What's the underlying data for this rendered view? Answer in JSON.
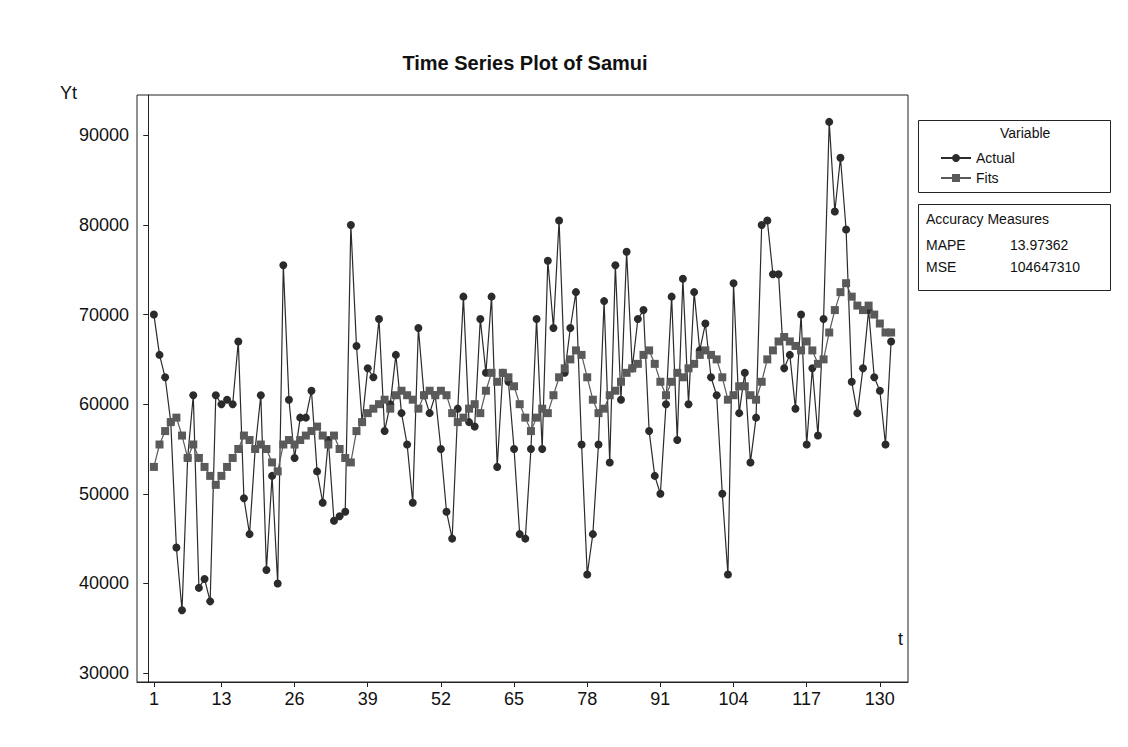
{
  "chart_data": {
    "type": "line",
    "title": "Time Series Plot of Samui",
    "x_label": "t",
    "y_label": "Yt",
    "x": [
      1,
      2,
      3,
      4,
      5,
      6,
      7,
      8,
      9,
      10,
      11,
      12,
      13,
      14,
      15,
      16,
      17,
      18,
      19,
      20,
      21,
      22,
      23,
      24,
      25,
      26,
      27,
      28,
      29,
      30,
      31,
      32,
      33,
      34,
      35,
      36,
      37,
      38,
      39,
      40,
      41,
      42,
      43,
      44,
      45,
      46,
      47,
      48,
      49,
      50,
      51,
      52,
      53,
      54,
      55,
      56,
      57,
      58,
      59,
      60,
      61,
      62,
      63,
      64,
      65,
      66,
      67,
      68,
      69,
      70,
      71,
      72,
      73,
      74,
      75,
      76,
      77,
      78,
      79,
      80,
      81,
      82,
      83,
      84,
      85,
      86,
      87,
      88,
      89,
      90,
      91,
      92,
      93,
      94,
      95,
      96,
      97,
      98,
      99,
      100,
      101,
      102,
      103,
      104,
      105,
      106,
      107,
      108,
      109,
      110,
      111,
      112,
      113,
      114,
      115,
      116,
      117,
      118,
      119,
      120,
      121,
      122,
      123,
      124,
      125,
      126,
      127,
      128,
      129,
      130,
      131,
      132
    ],
    "series": [
      {
        "name": "Actual",
        "color": "#2b2b2b",
        "marker": "circle",
        "line_style": "solid",
        "values": [
          70000,
          65500,
          63000,
          58000,
          44000,
          37000,
          54000,
          61000,
          39500,
          40500,
          38000,
          61000,
          60000,
          60500,
          60000,
          67000,
          49500,
          45500,
          55000,
          61000,
          41500,
          52000,
          40000,
          75500,
          60500,
          54000,
          58500,
          58500,
          61500,
          52500,
          49000,
          56000,
          47000,
          47500,
          48000,
          80000,
          66500,
          58000,
          64000,
          63000,
          69500,
          57000,
          60000,
          65500,
          59000,
          55500,
          49000,
          68500,
          61000,
          59000,
          61000,
          55000,
          48000,
          45000,
          59500,
          72000,
          58000,
          57500,
          69500,
          63500,
          72000,
          53000,
          63500,
          62500,
          55000,
          45500,
          45000,
          55000,
          69500,
          55000,
          76000,
          68500,
          80500,
          63500,
          68500,
          72500,
          55500,
          41000,
          45500,
          55500,
          71500,
          53500,
          75500,
          60500,
          77000,
          64000,
          69500,
          70500,
          57000,
          52000,
          50000,
          60000,
          72000,
          56000,
          74000,
          60000,
          72500,
          66000,
          69000,
          63000,
          61000,
          50000,
          41000,
          73500,
          59000,
          63500,
          53500,
          58500,
          80000,
          80500,
          74500,
          74500,
          64000,
          65500,
          59500,
          70000,
          55500,
          64000,
          56500,
          69500,
          91500,
          81500,
          87500,
          79500,
          62500,
          59000,
          64000,
          70500,
          63000,
          61500,
          55500,
          67000
        ]
      },
      {
        "name": "Fits",
        "color": "#5a5a5a",
        "marker": "square",
        "line_style": "solid",
        "values": [
          53000,
          55500,
          57000,
          58000,
          58500,
          56500,
          54000,
          55500,
          54000,
          53000,
          52000,
          51000,
          52000,
          53000,
          54000,
          55000,
          56500,
          56000,
          55000,
          55500,
          55000,
          53500,
          52500,
          55500,
          56000,
          55500,
          56000,
          56500,
          57000,
          57500,
          56500,
          55500,
          56500,
          55000,
          54000,
          53500,
          57000,
          58000,
          59000,
          59500,
          60000,
          60500,
          59500,
          61000,
          61500,
          61000,
          60500,
          59500,
          61000,
          61500,
          61000,
          61500,
          61000,
          59000,
          58000,
          58500,
          59500,
          60000,
          59000,
          61500,
          63500,
          62500,
          63500,
          63000,
          62000,
          60000,
          58500,
          57000,
          58500,
          59500,
          59000,
          61000,
          63000,
          64000,
          65000,
          66000,
          65500,
          63000,
          60500,
          59000,
          59500,
          61000,
          61500,
          62500,
          63500,
          64000,
          64500,
          65500,
          66000,
          64500,
          62500,
          61000,
          62500,
          63500,
          63000,
          64000,
          64500,
          65500,
          66000,
          65500,
          65000,
          63000,
          60500,
          61000,
          62000,
          62000,
          61000,
          60500,
          62500,
          65000,
          66000,
          67000,
          67500,
          67000,
          66500,
          66000,
          67000,
          66000,
          64500,
          65000,
          68000,
          70500,
          72500,
          73500,
          72000,
          71000,
          70500,
          71000,
          70000,
          69000,
          68000,
          68000
        ]
      }
    ],
    "xlim": [
      -2,
      135
    ],
    "xticks": [
      1,
      13,
      26,
      39,
      52,
      65,
      78,
      91,
      104,
      117,
      130
    ],
    "ylim": [
      29000,
      94500
    ],
    "yticks": [
      30000,
      40000,
      50000,
      60000,
      70000,
      80000,
      90000
    ],
    "grid": false,
    "legend": "right",
    "legend_title": "Variable",
    "accuracy_measures": {
      "title": "Accuracy Measures",
      "rows": [
        {
          "label": "MAPE",
          "value": 13.97362
        },
        {
          "label": "MSE",
          "value": 104647310
        }
      ]
    }
  }
}
